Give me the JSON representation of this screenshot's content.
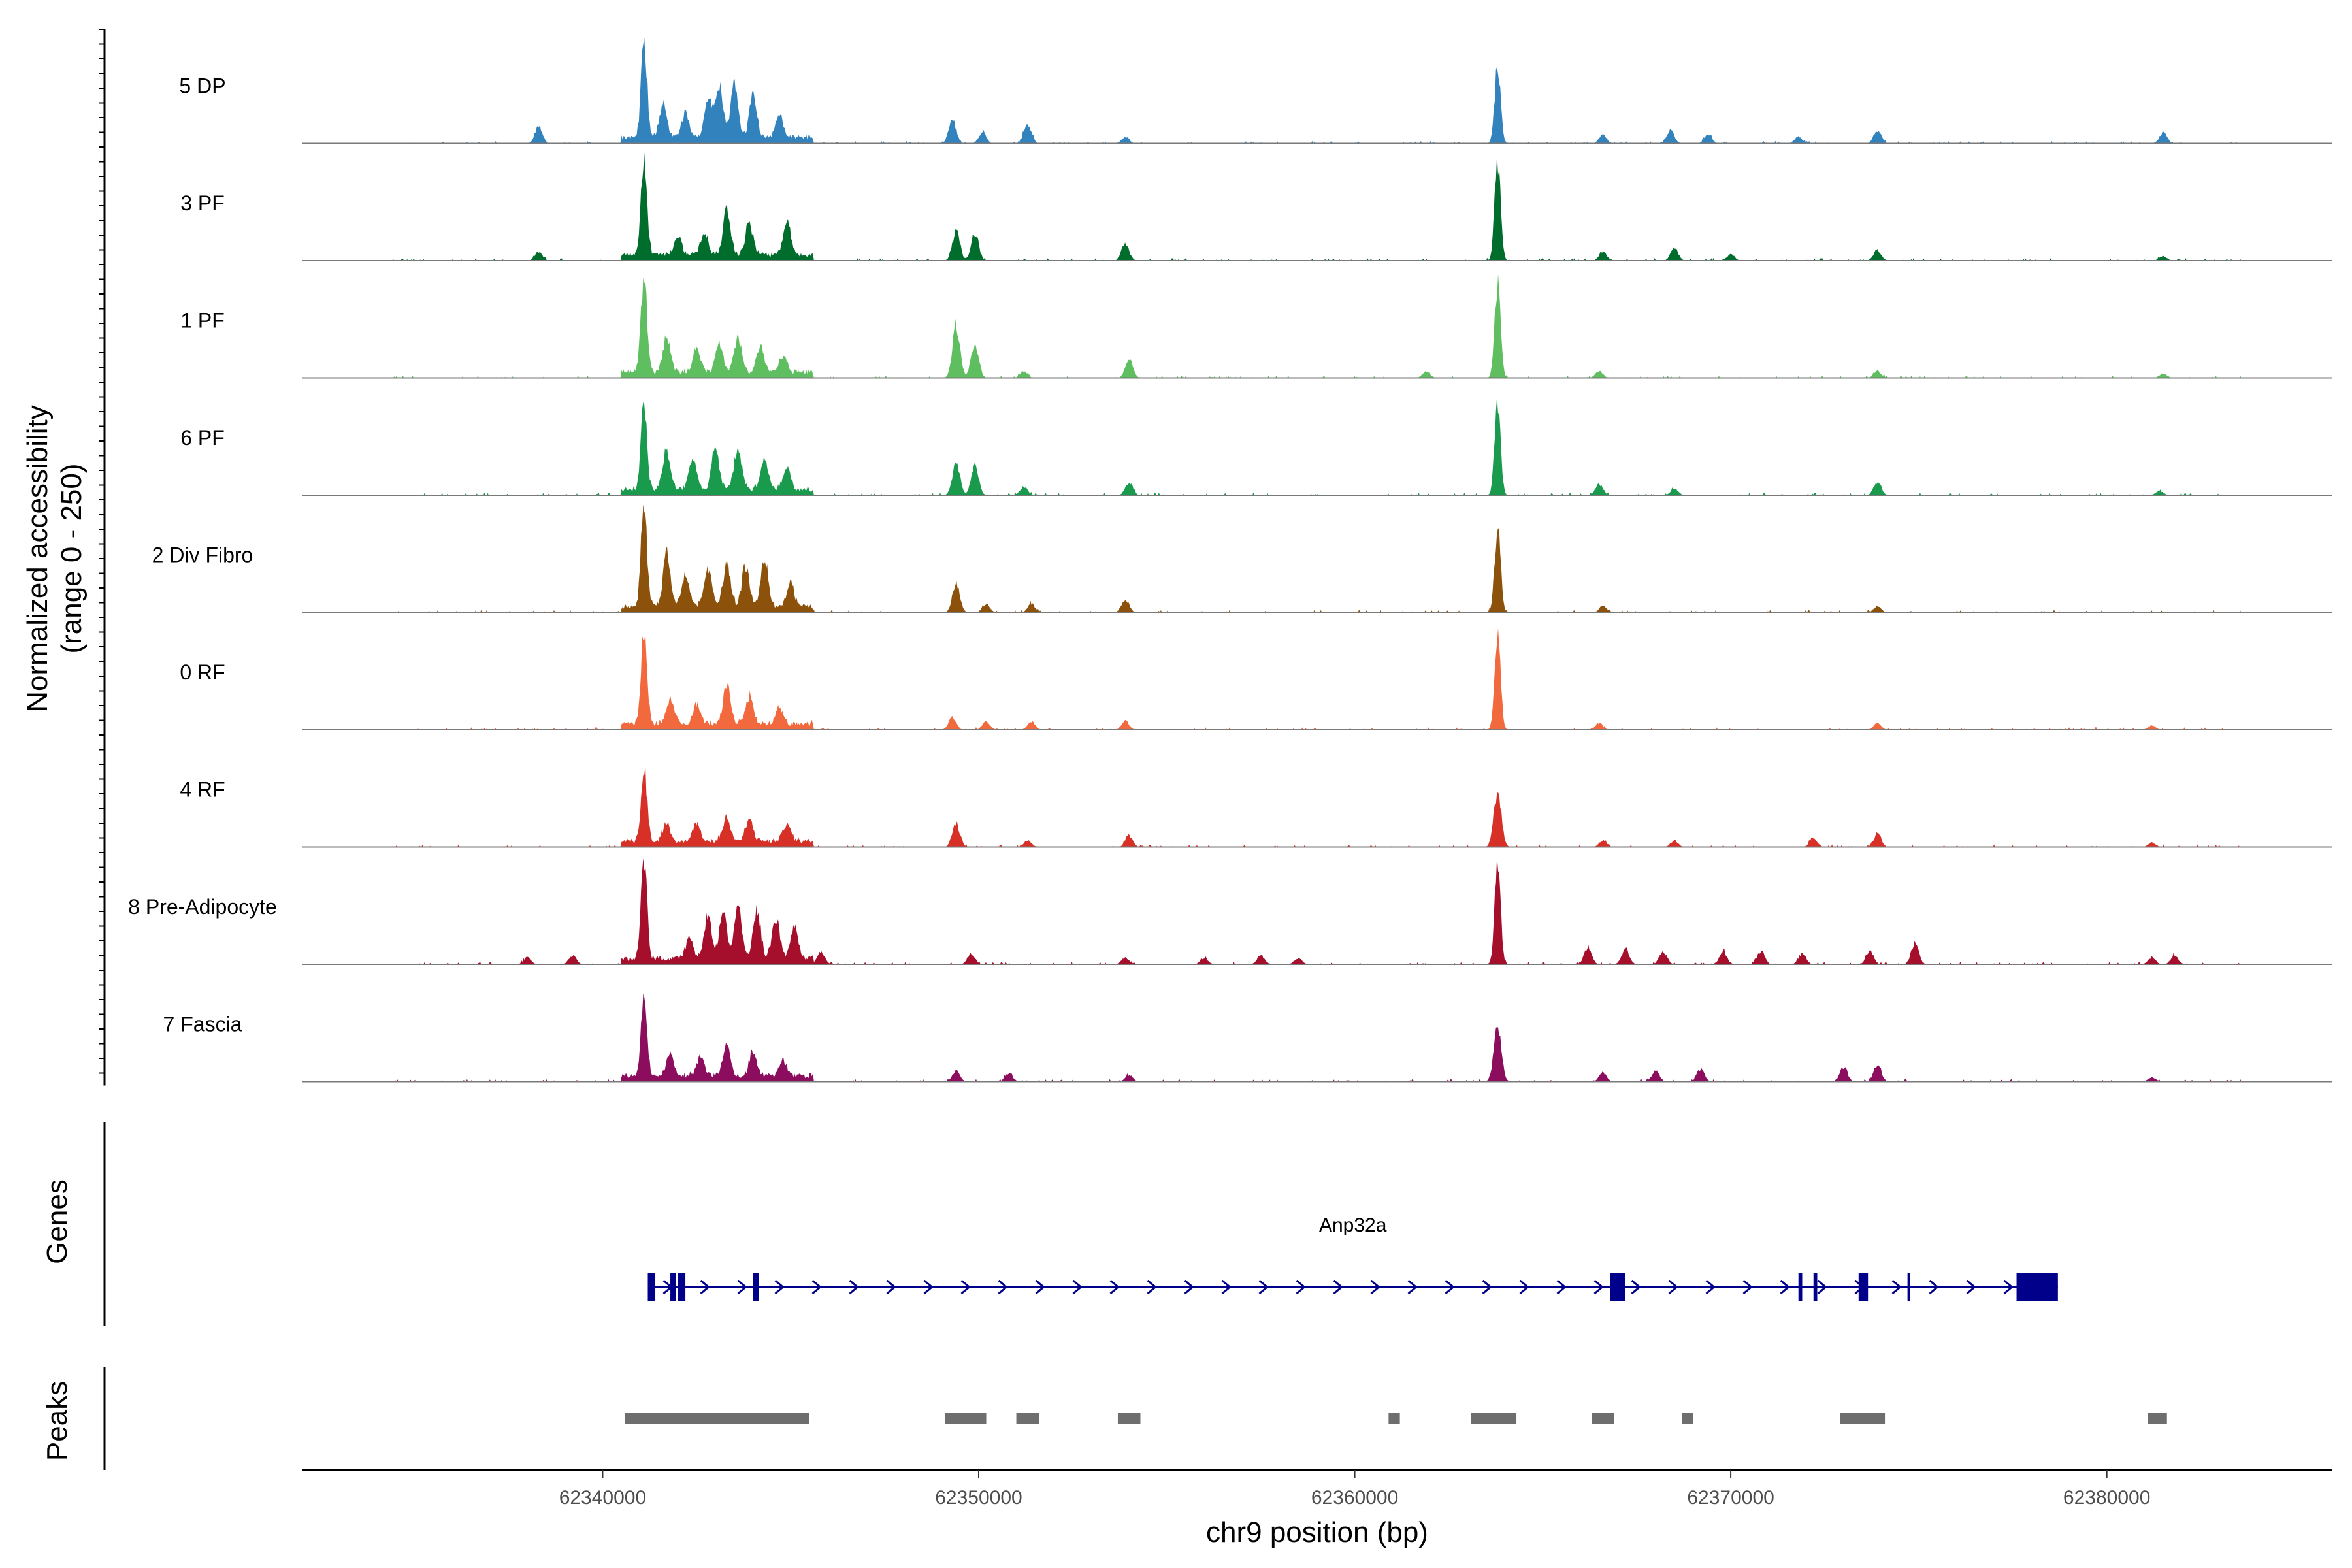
{
  "chart_data": {
    "type": "area",
    "title": "",
    "ylabel_line1": "Normalized accessibility",
    "ylabel_line2": "(range 0 - 250)",
    "xlabel": "chr9 position (bp)",
    "xlim": [
      62332000,
      62386000
    ],
    "ylim": [
      0,
      250
    ],
    "x_ticks": [
      {
        "value": 62340000,
        "label": "62340000"
      },
      {
        "value": 62350000,
        "label": "62350000"
      },
      {
        "value": 62360000,
        "label": "62360000"
      },
      {
        "value": 62370000,
        "label": "62370000"
      },
      {
        "value": 62380000,
        "label": "62380000"
      }
    ],
    "series": [
      {
        "name": "5 DP",
        "color": "#3182bd",
        "peaks": [
          [
            62338300,
            40
          ],
          [
            62341100,
            230
          ],
          [
            62341600,
            80
          ],
          [
            62342200,
            60
          ],
          [
            62342800,
            90
          ],
          [
            62343100,
            120
          ],
          [
            62343500,
            130
          ],
          [
            62344000,
            100
          ],
          [
            62344700,
            55
          ],
          [
            62349300,
            55
          ],
          [
            62350100,
            25
          ],
          [
            62351300,
            45
          ],
          [
            62353900,
            15
          ],
          [
            62363800,
            180
          ],
          [
            62366600,
            20
          ],
          [
            62368400,
            30
          ],
          [
            62369400,
            20
          ],
          [
            62371800,
            15
          ],
          [
            62373900,
            30
          ],
          [
            62381500,
            25
          ]
        ]
      },
      {
        "name": "3 PF",
        "color": "#006d2c",
        "peaks": [
          [
            62338300,
            20
          ],
          [
            62341100,
            230
          ],
          [
            62342000,
            45
          ],
          [
            62342700,
            50
          ],
          [
            62343300,
            100
          ],
          [
            62343900,
            75
          ],
          [
            62344900,
            75
          ],
          [
            62349400,
            70
          ],
          [
            62349900,
            65
          ],
          [
            62353900,
            40
          ],
          [
            62363800,
            230
          ],
          [
            62366600,
            20
          ],
          [
            62368500,
            30
          ],
          [
            62370000,
            15
          ],
          [
            62373900,
            25
          ],
          [
            62381500,
            10
          ]
        ]
      },
      {
        "name": "1 PF",
        "color": "#5fbf60",
        "peaks": [
          [
            62341100,
            230
          ],
          [
            62341700,
            85
          ],
          [
            62342500,
            55
          ],
          [
            62343100,
            65
          ],
          [
            62343600,
            80
          ],
          [
            62344200,
            60
          ],
          [
            62344800,
            40
          ],
          [
            62349400,
            120
          ],
          [
            62349900,
            80
          ],
          [
            62351200,
            15
          ],
          [
            62354000,
            45
          ],
          [
            62361900,
            15
          ],
          [
            62363800,
            220
          ],
          [
            62366500,
            15
          ],
          [
            62373900,
            15
          ],
          [
            62381500,
            10
          ]
        ]
      },
      {
        "name": "6 PF",
        "color": "#199a4d",
        "peaks": [
          [
            62341100,
            210
          ],
          [
            62341700,
            90
          ],
          [
            62342400,
            75
          ],
          [
            62343000,
            95
          ],
          [
            62343600,
            95
          ],
          [
            62344300,
            70
          ],
          [
            62344900,
            50
          ],
          [
            62349400,
            75
          ],
          [
            62349900,
            65
          ],
          [
            62351200,
            20
          ],
          [
            62354000,
            30
          ],
          [
            62363800,
            210
          ],
          [
            62366500,
            25
          ],
          [
            62368500,
            15
          ],
          [
            62373900,
            30
          ],
          [
            62381400,
            10
          ]
        ]
      },
      {
        "name": "2 Div Fibro",
        "color": "#8c510a",
        "peaks": [
          [
            62341100,
            250
          ],
          [
            62341700,
            120
          ],
          [
            62342200,
            75
          ],
          [
            62342800,
            90
          ],
          [
            62343300,
            100
          ],
          [
            62343800,
            95
          ],
          [
            62344300,
            110
          ],
          [
            62345000,
            55
          ],
          [
            62349400,
            65
          ],
          [
            62350200,
            20
          ],
          [
            62351400,
            20
          ],
          [
            62353900,
            30
          ],
          [
            62363800,
            200
          ],
          [
            62366600,
            15
          ],
          [
            62373900,
            15
          ]
        ]
      },
      {
        "name": "0 RF",
        "color": "#f1693c",
        "peaks": [
          [
            62341100,
            225
          ],
          [
            62341800,
            55
          ],
          [
            62342500,
            45
          ],
          [
            62343300,
            90
          ],
          [
            62343900,
            65
          ],
          [
            62344700,
            40
          ],
          [
            62349300,
            30
          ],
          [
            62350200,
            20
          ],
          [
            62351400,
            20
          ],
          [
            62353900,
            20
          ],
          [
            62363800,
            215
          ],
          [
            62366500,
            15
          ],
          [
            62373900,
            15
          ],
          [
            62381200,
            10
          ]
        ]
      },
      {
        "name": "4 RF",
        "color": "#d73027",
        "peaks": [
          [
            62341100,
            180
          ],
          [
            62341700,
            45
          ],
          [
            62342500,
            40
          ],
          [
            62343300,
            55
          ],
          [
            62343900,
            50
          ],
          [
            62344900,
            40
          ],
          [
            62349400,
            55
          ],
          [
            62351300,
            15
          ],
          [
            62354000,
            25
          ],
          [
            62363800,
            130
          ],
          [
            62366600,
            15
          ],
          [
            62368500,
            15
          ],
          [
            62372200,
            20
          ],
          [
            62373900,
            30
          ],
          [
            62381200,
            10
          ]
        ]
      },
      {
        "name": "8 Pre-Adipocyte",
        "color": "#a50f2b",
        "peaks": [
          [
            62338000,
            15
          ],
          [
            62339200,
            20
          ],
          [
            62341100,
            240
          ],
          [
            62342300,
            45
          ],
          [
            62342800,
            95
          ],
          [
            62343200,
            110
          ],
          [
            62343600,
            115
          ],
          [
            62344100,
            110
          ],
          [
            62344600,
            95
          ],
          [
            62345100,
            75
          ],
          [
            62345800,
            30
          ],
          [
            62349800,
            25
          ],
          [
            62353900,
            15
          ],
          [
            62356000,
            15
          ],
          [
            62357500,
            20
          ],
          [
            62358500,
            15
          ],
          [
            62363800,
            230
          ],
          [
            62366200,
            40
          ],
          [
            62367200,
            35
          ],
          [
            62368200,
            30
          ],
          [
            62369800,
            30
          ],
          [
            62370800,
            30
          ],
          [
            62371900,
            25
          ],
          [
            62373700,
            30
          ],
          [
            62374900,
            50
          ],
          [
            62381200,
            15
          ],
          [
            62381800,
            20
          ]
        ]
      },
      {
        "name": "7 Fascia",
        "color": "#8c0c5e",
        "peaks": [
          [
            62341100,
            180
          ],
          [
            62341800,
            50
          ],
          [
            62342600,
            45
          ],
          [
            62343300,
            70
          ],
          [
            62344000,
            55
          ],
          [
            62344800,
            35
          ],
          [
            62349400,
            25
          ],
          [
            62350800,
            20
          ],
          [
            62354000,
            15
          ],
          [
            62363800,
            130
          ],
          [
            62366600,
            20
          ],
          [
            62368000,
            25
          ],
          [
            62369200,
            30
          ],
          [
            62373000,
            35
          ],
          [
            62373900,
            40
          ],
          [
            62381200,
            10
          ]
        ]
      }
    ],
    "genes_label": "Genes",
    "gene": {
      "name": "Anp32a",
      "start": 62341200,
      "end": 62378700,
      "strand": "+",
      "exons": [
        [
          62341200,
          62341400
        ],
        [
          62341800,
          62341950
        ],
        [
          62342000,
          62342200
        ],
        [
          62344000,
          62344150
        ],
        [
          62366800,
          62367200
        ],
        [
          62371800,
          62371900
        ],
        [
          62372200,
          62372300
        ],
        [
          62373400,
          62373650
        ],
        [
          62374700,
          62374750
        ],
        [
          62377600,
          62378700
        ]
      ]
    },
    "peaks_label": "Peaks",
    "peak_regions": [
      [
        62340600,
        62345500
      ],
      [
        62349100,
        62350200
      ],
      [
        62351000,
        62351600
      ],
      [
        62353700,
        62354300
      ],
      [
        62360900,
        62361200
      ],
      [
        62363100,
        62364300
      ],
      [
        62366300,
        62366900
      ],
      [
        62368700,
        62369000
      ],
      [
        62372900,
        62374100
      ],
      [
        62381100,
        62381600
      ]
    ]
  }
}
